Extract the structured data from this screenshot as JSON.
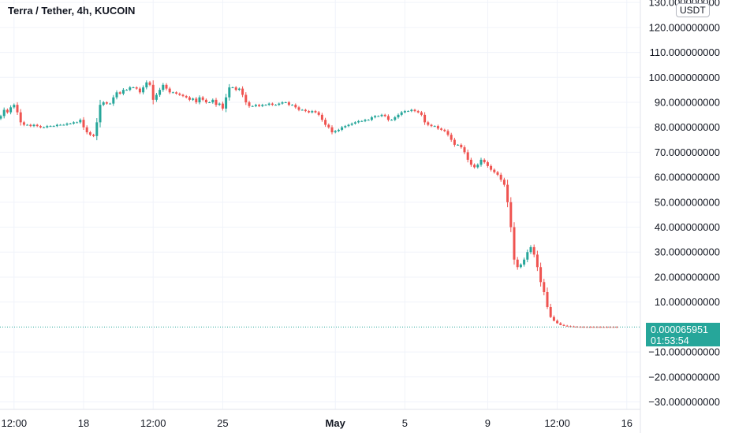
{
  "legend": {
    "title": "Terra / Tether, 4h, KUCOIN"
  },
  "unit": "USDT",
  "colors": {
    "up": "#26a69a",
    "down": "#ef5350",
    "grid": "#f0f3fa",
    "text": "#131722",
    "last_price_line": "#26a69a"
  },
  "last_price": {
    "value": "0.000065951",
    "countdown": "01:53:54"
  },
  "chart_data": {
    "type": "candlestick",
    "title": "Terra / Tether, 4h, KUCOIN",
    "y_unit": "USDT",
    "y_range": [
      -33,
      131
    ],
    "y_ticks": [
      {
        "value": 130,
        "label": "130.000000000"
      },
      {
        "value": 120,
        "label": "120.000000000"
      },
      {
        "value": 110,
        "label": "110.000000000"
      },
      {
        "value": 100,
        "label": "100.000000000"
      },
      {
        "value": 90,
        "label": "90.000000000"
      },
      {
        "value": 80,
        "label": "80.000000000"
      },
      {
        "value": 70,
        "label": "70.000000000"
      },
      {
        "value": 60,
        "label": "60.000000000"
      },
      {
        "value": 50,
        "label": "50.000000000"
      },
      {
        "value": 40,
        "label": "40.000000000"
      },
      {
        "value": 30,
        "label": "30.000000000"
      },
      {
        "value": 20,
        "label": "20.000000000"
      },
      {
        "value": 10,
        "label": "10.000000000"
      },
      {
        "value": -10,
        "label": "−10.000000000"
      },
      {
        "value": -20,
        "label": "−20.000000000"
      },
      {
        "value": -30,
        "label": "−30.000000000"
      }
    ],
    "x_ticks": [
      {
        "index": 4,
        "label": "12:00",
        "bold": false
      },
      {
        "index": 25,
        "label": "18",
        "bold": false
      },
      {
        "index": 46,
        "label": "12:00",
        "bold": false
      },
      {
        "index": 67,
        "label": "25",
        "bold": false
      },
      {
        "index": 101,
        "label": "May",
        "bold": true
      },
      {
        "index": 122,
        "label": "5",
        "bold": false
      },
      {
        "index": 147,
        "label": "9",
        "bold": false
      },
      {
        "index": 168,
        "label": "12:00",
        "bold": false
      },
      {
        "index": 189,
        "label": "16",
        "bold": false
      }
    ],
    "closes": [
      84.5,
      87,
      86,
      88,
      89,
      86,
      82,
      81,
      81,
      80.5,
      81,
      80.5,
      80,
      80,
      80.5,
      80.5,
      80.5,
      81,
      81,
      81,
      81.5,
      81.5,
      82,
      82,
      83,
      80,
      78,
      77,
      76.5,
      82,
      89,
      90,
      89.5,
      89.5,
      92,
      94,
      93.5,
      95,
      95,
      96,
      96,
      95.5,
      94,
      96,
      98,
      97,
      91,
      93,
      95,
      97,
      95.5,
      94,
      94,
      93.5,
      93,
      92.5,
      92,
      91,
      91.5,
      90,
      92,
      91,
      90,
      90,
      91,
      89,
      89.5,
      87.5,
      92,
      96,
      96,
      95,
      95.5,
      93,
      90,
      88.5,
      88.5,
      89,
      88.5,
      89,
      89,
      89.5,
      89,
      89,
      89.5,
      90,
      90,
      89,
      89,
      88,
      87,
      87,
      86.5,
      86,
      86.5,
      86,
      85,
      83,
      81,
      80,
      78,
      78.5,
      79,
      80,
      80.5,
      81,
      81.5,
      82,
      82.5,
      82.5,
      83,
      83,
      84,
      84.5,
      84.5,
      85,
      84.5,
      83,
      83,
      84,
      85,
      86,
      86.5,
      86.5,
      87,
      86.5,
      86,
      85,
      82,
      81,
      80.5,
      80.5,
      79.5,
      79,
      78.5,
      77,
      75,
      73,
      73,
      72,
      70,
      67,
      65,
      64,
      65,
      67,
      66,
      64.5,
      63,
      62,
      61,
      59,
      57,
      50,
      40,
      27,
      24,
      25,
      27,
      30,
      32,
      29,
      24,
      18,
      14,
      8,
      4,
      2.5,
      1.5,
      0.8,
      0.5,
      0.3,
      0.2,
      0.1,
      0.05,
      0.03,
      0.02,
      0.01,
      0.005,
      0.003,
      0.002,
      0.001,
      0.0005,
      0.0003,
      0.0002,
      0.0001,
      6.5951e-05
    ]
  }
}
